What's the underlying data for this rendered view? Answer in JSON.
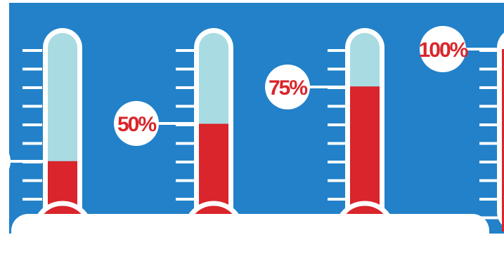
{
  "colors": {
    "background": "#2281c8",
    "tube_empty": "#a9dbe3",
    "fill": "#d9252b",
    "outline": "#ffffff",
    "label_text": "#d9252b",
    "card": "#ffffff"
  },
  "thermometers": [
    {
      "name": "thermometer-25",
      "level": 0.25,
      "label": ""
    },
    {
      "name": "thermometer-50",
      "level": 0.5,
      "label": "50%"
    },
    {
      "name": "thermometer-75",
      "level": 0.75,
      "label": "75%"
    },
    {
      "name": "thermometer-100",
      "level": 1.0,
      "label": "100%"
    }
  ]
}
